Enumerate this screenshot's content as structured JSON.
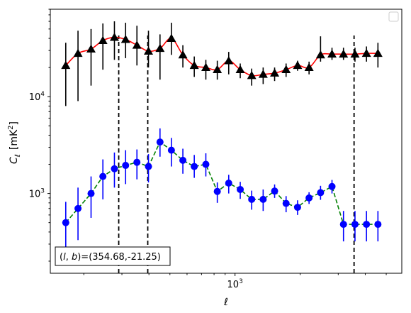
{
  "chart_data": {
    "type": "line",
    "xlabel": "ℓ",
    "ylabel": "C",
    "ylabel_sub": "ℓ",
    "ylabel_unit": "[mK",
    "ylabel_unit_sup": "2",
    "ylabel_unit_end": "]",
    "xscale": "log",
    "yscale": "log",
    "xlim": [
      140,
      5900
    ],
    "ylim": [
      150,
      80000
    ],
    "x_ticks": [
      {
        "value": 1000,
        "label": "10",
        "exp": "3"
      }
    ],
    "y_ticks": [
      {
        "value": 1000,
        "label": "10",
        "exp": "3"
      },
      {
        "value": 10000,
        "label": "10",
        "exp": "4"
      }
    ],
    "legend": {
      "placement": "top-right",
      "entries": []
    },
    "vlines": [
      {
        "x": 290,
        "color": "#000000",
        "style": "dashed"
      },
      {
        "x": 395,
        "color": "#000000",
        "style": "dashed"
      },
      {
        "x": 3550,
        "color": "#000000",
        "style": "dashed"
      }
    ],
    "series": [
      {
        "color": "#ff0000",
        "marker": "triangle",
        "marker_color": "#000000",
        "errorbar_color": "#000000",
        "line_style": "solid",
        "smooth": true,
        "x": [
          165,
          188,
          216,
          245,
          277,
          291,
          335,
          372,
          410,
          482,
          552,
          632,
          724,
          830,
          950,
          1089,
          1248,
          1430,
          1638,
          1875,
          2150,
          2462,
          2820,
          3230,
          3550,
          3850,
          4300,
          5050
        ],
        "y": [
          21000,
          28000,
          31000,
          38000,
          41000,
          40000,
          34000,
          31000,
          29000,
          40000,
          27000,
          21000,
          19500,
          19000,
          23000,
          18500,
          16500,
          17000,
          17500,
          19000,
          21000,
          20000,
          27000,
          28000,
          28000,
          27500,
          28000,
          28000
        ],
        "err_low": [
          8000,
          9000,
          13000,
          19000,
          24000,
          25000,
          21000,
          20000,
          15000,
          27000,
          20000,
          16000,
          15000,
          15000,
          17000,
          15500,
          13000,
          13500,
          14500,
          16000,
          18500,
          17000,
          23000,
          24000,
          24000,
          23000,
          23000,
          20000
        ],
        "err_high": [
          36000,
          48000,
          50000,
          57000,
          60000,
          58000,
          54000,
          48000,
          44000,
          58000,
          34000,
          26000,
          24000,
          23500,
          29000,
          22000,
          19500,
          20000,
          20000,
          22000,
          23500,
          23000,
          42000,
          32000,
          32000,
          32000,
          33000,
          36000
        ],
        "points_x": [
          165,
          188,
          216,
          245,
          277,
          312,
          352,
          398,
          450,
          508,
          574,
          648,
          733,
          828,
          935,
          1057,
          1194,
          1349,
          1524,
          1722,
          1946,
          2199,
          2485,
          2807,
          3172,
          3585,
          4051,
          4577
        ],
        "points_y": [
          21000,
          28000,
          31000,
          38000,
          41000,
          39000,
          34000,
          29500,
          31500,
          40000,
          27000,
          21000,
          20000,
          19000,
          23500,
          19000,
          16500,
          17000,
          17500,
          19000,
          21000,
          20000,
          27000,
          27500,
          27500,
          27500,
          28000,
          28000
        ]
      },
      {
        "color": "#008000",
        "marker": "circle",
        "marker_color": "#0000ff",
        "errorbar_color": "#0000ff",
        "line_style": "dashed",
        "smooth": false,
        "points_x": [
          165,
          188,
          216,
          245,
          277,
          312,
          352,
          398,
          450,
          508,
          574,
          648,
          733,
          828,
          935,
          1057,
          1194,
          1349,
          1524,
          1722,
          1946,
          2199,
          2485,
          2807,
          3172,
          3585,
          4051,
          4577
        ],
        "points_y": [
          500,
          700,
          1000,
          1500,
          1800,
          1950,
          2100,
          1900,
          3400,
          2800,
          2200,
          1900,
          2000,
          1050,
          1280,
          1100,
          870,
          870,
          1060,
          790,
          720,
          900,
          1020,
          1180,
          480,
          480,
          480,
          480
        ],
        "err_low": [
          260,
          330,
          560,
          870,
          1150,
          1250,
          1400,
          1300,
          2400,
          1900,
          1600,
          1450,
          1500,
          800,
          1000,
          880,
          680,
          660,
          900,
          640,
          600,
          780,
          860,
          1000,
          320,
          320,
          320,
          320
        ],
        "err_high": [
          820,
          1150,
          1500,
          2250,
          2650,
          2800,
          2850,
          2550,
          4700,
          3750,
          2900,
          2500,
          2600,
          1300,
          1560,
          1320,
          1070,
          1100,
          1240,
          940,
          850,
          1030,
          1200,
          1380,
          660,
          660,
          660,
          660
        ]
      }
    ],
    "annotation": {
      "text": "(l, b)=(354.68,-21.25)",
      "placement": "bottom-left"
    }
  }
}
